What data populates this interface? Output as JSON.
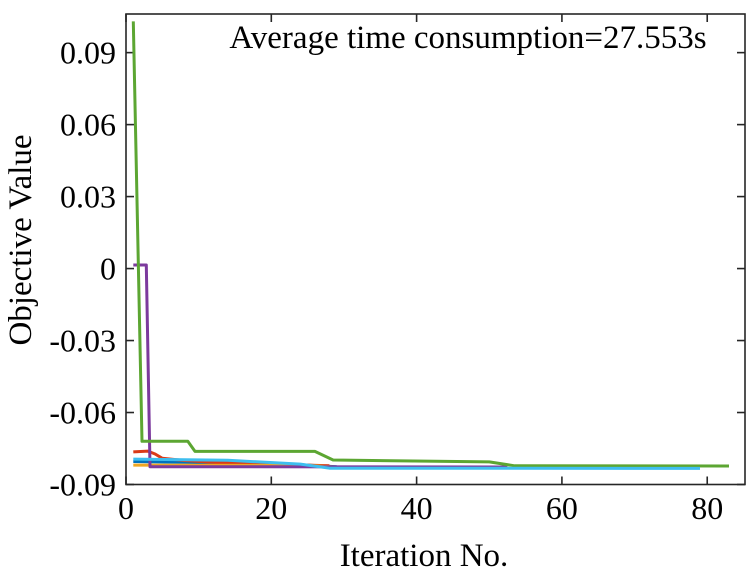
{
  "figure": {
    "background": "#ffffff",
    "axis_color": "#262626"
  },
  "chart_data": {
    "type": "line",
    "title": "",
    "annotation": "Average time consumption=27.553s",
    "xlabel": "Iteration No.",
    "ylabel": "Objective Value",
    "xlim": [
      0,
      85.2
    ],
    "ylim": [
      -0.09,
      0.1061
    ],
    "xticks": [
      0,
      20,
      40,
      60,
      80
    ],
    "xtick_labels": [
      "0",
      "20",
      "40",
      "60",
      "80"
    ],
    "yticks": [
      -0.09,
      -0.06,
      -0.03,
      0,
      0.03,
      0.06,
      0.09
    ],
    "ytick_labels": [
      "-0.09",
      "-0.06",
      "-0.03",
      "0",
      "0.03",
      "0.06",
      "0.09"
    ],
    "grid": false,
    "legend": "none",
    "box": true,
    "series": [
      {
        "name": "run-blue",
        "color": "#0072BD",
        "points": [
          [
            1,
            -0.0804
          ],
          [
            12,
            -0.0809
          ],
          [
            24,
            -0.0818
          ],
          [
            29,
            -0.0826
          ]
        ]
      },
      {
        "name": "run-red",
        "color": "#DB3A17",
        "points": [
          [
            1,
            -0.0764
          ],
          [
            3,
            -0.0761
          ],
          [
            4,
            -0.0773
          ],
          [
            5,
            -0.0791
          ],
          [
            8,
            -0.08
          ],
          [
            13,
            -0.0809
          ],
          [
            20,
            -0.0815
          ],
          [
            28,
            -0.0822
          ]
        ]
      },
      {
        "name": "run-orange",
        "color": "#EFA723",
        "points": [
          [
            1,
            -0.0819
          ],
          [
            25,
            -0.0821
          ],
          [
            29.5,
            -0.0828
          ]
        ]
      },
      {
        "name": "run-purple",
        "color": "#7C3A9D",
        "points": [
          [
            1,
            0.0015
          ],
          [
            2.8,
            0.0015
          ],
          [
            3.3,
            -0.0826
          ],
          [
            52.5,
            -0.0827
          ]
        ]
      },
      {
        "name": "run-green",
        "color": "#5CA632",
        "points": [
          [
            1,
            0.103
          ],
          [
            2.2,
            -0.072
          ],
          [
            8.5,
            -0.072
          ],
          [
            9.5,
            -0.0762
          ],
          [
            26,
            -0.0762
          ],
          [
            28.5,
            -0.0798
          ],
          [
            50,
            -0.0806
          ],
          [
            53.5,
            -0.0822
          ],
          [
            83,
            -0.0823
          ]
        ]
      },
      {
        "name": "run-cyan",
        "color": "#3EBEEF",
        "points": [
          [
            1,
            -0.0794
          ],
          [
            14,
            -0.0799
          ],
          [
            24,
            -0.0815
          ],
          [
            28,
            -0.0832
          ],
          [
            79,
            -0.0833
          ]
        ]
      }
    ]
  }
}
